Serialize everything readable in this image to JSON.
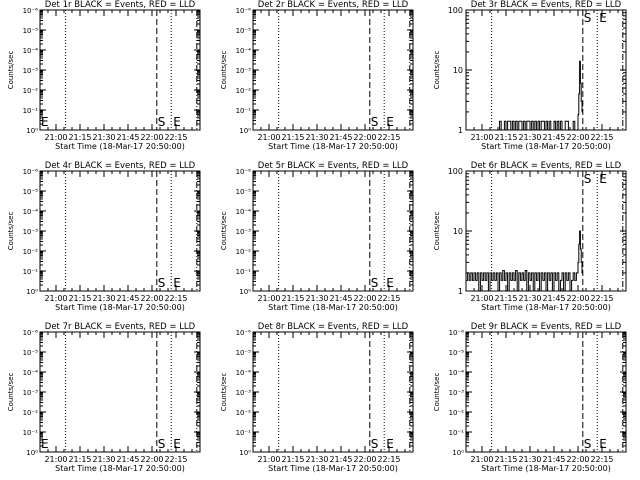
{
  "page": {
    "background": "#ffffff",
    "ink": "#000000"
  },
  "common": {
    "xlabel": "Start Time (18-Mar-17 20:50:00)",
    "ylabel": "Counts/sec",
    "x_tick_labels": [
      "21:00",
      "21:15",
      "21:30",
      "21:45",
      "22:00",
      "22:15"
    ],
    "x_tick_minutes": [
      10,
      25,
      40,
      55,
      70,
      85
    ],
    "x_range_minutes": [
      0,
      100
    ],
    "dotted_lines_minutes": [
      16,
      82
    ],
    "dashed_line_minutes": 73,
    "dashdot_line_minutes": 98,
    "S_marker_minutes": 73,
    "E_marker_minutes": 82,
    "S_label": "S",
    "E_label": "E"
  },
  "chart_data": [
    {
      "type": "line",
      "title": "Det 1r BLACK = Events, RED = LLD",
      "scale": "log-empty",
      "y_tick_labels": [
        "10⁰",
        "10⁻¹",
        "10⁻²",
        "10⁻³",
        "10⁻⁴",
        "10⁻⁵",
        "10⁻⁶"
      ],
      "extra_E_minutes": 0,
      "series": []
    },
    {
      "type": "line",
      "title": "Det 2r BLACK = Events, RED = LLD",
      "scale": "log-empty",
      "y_tick_labels": [
        "10⁰",
        "10⁻¹",
        "10⁻²",
        "10⁻³",
        "10⁻⁴",
        "10⁻⁵",
        "10⁻⁶"
      ],
      "extra_E_minutes": null,
      "series": []
    },
    {
      "type": "line",
      "title": "Det 3r BLACK = Events, RED = LLD",
      "scale": "log",
      "ylim": [
        1,
        100
      ],
      "y_tick_labels": [
        "1",
        "10",
        "100"
      ],
      "extra_E_minutes": null,
      "series": [
        {
          "values": [
            [
              20,
              1
            ],
            [
              21,
              1
            ],
            [
              21,
              1.4
            ],
            [
              22,
              1.4
            ],
            [
              22,
              1
            ],
            [
              24,
              1
            ],
            [
              24,
              1.4
            ],
            [
              25,
              1.4
            ],
            [
              25,
              1
            ],
            [
              26,
              1
            ],
            [
              26,
              1.4
            ],
            [
              28,
              1.4
            ],
            [
              28,
              1
            ],
            [
              29,
              1
            ],
            [
              29,
              1.4
            ],
            [
              30,
              1.4
            ],
            [
              30,
              1
            ],
            [
              31,
              1
            ],
            [
              31,
              1.4
            ],
            [
              32,
              1.4
            ],
            [
              32,
              1
            ],
            [
              33,
              1
            ],
            [
              33,
              1.4
            ],
            [
              35,
              1.4
            ],
            [
              35,
              1
            ],
            [
              36,
              1
            ],
            [
              36,
              1.4
            ],
            [
              37,
              1.4
            ],
            [
              37,
              1
            ],
            [
              38,
              1
            ],
            [
              38,
              1.4
            ],
            [
              40,
              1.4
            ],
            [
              40,
              1
            ],
            [
              41,
              1
            ],
            [
              41,
              1.4
            ],
            [
              42,
              1.4
            ],
            [
              42,
              1
            ],
            [
              43,
              1
            ],
            [
              43,
              1.4
            ],
            [
              44,
              1.4
            ],
            [
              44,
              1
            ],
            [
              45,
              1
            ],
            [
              45,
              1.4
            ],
            [
              46,
              1.4
            ],
            [
              46,
              1
            ],
            [
              47,
              1
            ],
            [
              47,
              1.4
            ],
            [
              49,
              1.4
            ],
            [
              49,
              1
            ],
            [
              50,
              1
            ],
            [
              50,
              1.4
            ],
            [
              51,
              1.4
            ],
            [
              51,
              1
            ],
            [
              52,
              1
            ],
            [
              52,
              1.4
            ],
            [
              53,
              1.4
            ],
            [
              53,
              1
            ],
            [
              55,
              1
            ],
            [
              55,
              1.4
            ],
            [
              56,
              1.4
            ],
            [
              56,
              1
            ],
            [
              57,
              1
            ],
            [
              57,
              1.4
            ],
            [
              58,
              1.4
            ],
            [
              58,
              1
            ],
            [
              59,
              1
            ],
            [
              59,
              1.4
            ],
            [
              60,
              1.4
            ],
            [
              60,
              1
            ],
            [
              62,
              1
            ],
            [
              62,
              1.4
            ],
            [
              64,
              1.4
            ],
            [
              64,
              1
            ],
            [
              67,
              1
            ],
            [
              67,
              1.4
            ],
            [
              68,
              1.4
            ],
            [
              68,
              1
            ],
            [
              70,
              1
            ],
            [
              70,
              1.8
            ],
            [
              70.5,
              1.8
            ],
            [
              70.5,
              4
            ],
            [
              71,
              4
            ],
            [
              71,
              14
            ],
            [
              71.5,
              14
            ],
            [
              71.5,
              6
            ],
            [
              72,
              6
            ],
            [
              72,
              3
            ],
            [
              72.5,
              3
            ],
            [
              72.5,
              2
            ],
            [
              73,
              2
            ]
          ]
        }
      ]
    },
    {
      "type": "line",
      "title": "Det 4r BLACK = Events, RED = LLD",
      "scale": "log-empty",
      "y_tick_labels": [
        "10⁰",
        "10⁻¹",
        "10⁻²",
        "10⁻³",
        "10⁻⁴",
        "10⁻⁵",
        "10⁻⁶"
      ],
      "extra_E_minutes": null,
      "series": []
    },
    {
      "type": "line",
      "title": "Det 5r BLACK = Events, RED = LLD",
      "scale": "log-empty",
      "y_tick_labels": [
        "10⁰",
        "10⁻¹",
        "10⁻²",
        "10⁻³",
        "10⁻⁴",
        "10⁻⁵",
        "10⁻⁶"
      ],
      "extra_E_minutes": null,
      "series": []
    },
    {
      "type": "line",
      "title": "Det 6r BLACK = Events, RED = LLD",
      "scale": "log",
      "ylim": [
        1,
        100
      ],
      "y_tick_labels": [
        "1",
        "10",
        "100"
      ],
      "extra_E_minutes": null,
      "series": [
        {
          "values": [
            [
              0,
              1.5
            ],
            [
              1,
              1.5
            ],
            [
              1,
              2
            ],
            [
              2,
              2
            ],
            [
              2,
              1.5
            ],
            [
              3,
              1.5
            ],
            [
              3,
              2
            ],
            [
              4,
              2
            ],
            [
              4,
              1.5
            ],
            [
              5,
              1.5
            ],
            [
              5,
              2
            ],
            [
              6,
              2
            ],
            [
              6,
              1.5
            ],
            [
              7,
              1.5
            ],
            [
              7,
              2
            ],
            [
              8,
              2
            ],
            [
              8,
              1
            ],
            [
              9,
              1
            ],
            [
              9,
              2
            ],
            [
              10,
              2
            ],
            [
              10,
              1.5
            ],
            [
              11,
              1.5
            ],
            [
              11,
              2
            ],
            [
              12,
              2
            ],
            [
              12,
              1.5
            ],
            [
              13,
              1.5
            ],
            [
              13,
              2
            ],
            [
              14,
              2
            ],
            [
              14,
              1
            ],
            [
              15,
              1
            ],
            [
              15,
              2
            ],
            [
              16,
              2
            ],
            [
              16,
              1.5
            ],
            [
              17,
              1.5
            ],
            [
              17,
              2
            ],
            [
              18,
              2
            ],
            [
              18,
              1.5
            ],
            [
              19,
              1.5
            ],
            [
              19,
              2
            ],
            [
              20,
              2
            ],
            [
              20,
              1
            ],
            [
              21,
              1
            ],
            [
              21,
              2
            ],
            [
              22,
              2
            ],
            [
              22,
              1.5
            ],
            [
              23,
              1.5
            ],
            [
              23,
              2.2
            ],
            [
              24,
              2.2
            ],
            [
              24,
              1.5
            ],
            [
              25,
              1.5
            ],
            [
              25,
              2
            ],
            [
              26,
              2
            ],
            [
              26,
              1
            ],
            [
              27,
              1
            ],
            [
              27,
              2
            ],
            [
              28,
              2
            ],
            [
              28,
              1.5
            ],
            [
              29,
              1.5
            ],
            [
              29,
              2
            ],
            [
              30,
              2
            ],
            [
              30,
              1.5
            ],
            [
              31,
              1.5
            ],
            [
              31,
              2.2
            ],
            [
              32,
              2.2
            ],
            [
              32,
              1
            ],
            [
              33,
              1
            ],
            [
              33,
              2
            ],
            [
              34,
              2
            ],
            [
              34,
              1.5
            ],
            [
              35,
              1.5
            ],
            [
              35,
              2
            ],
            [
              36,
              2
            ],
            [
              36,
              1.5
            ],
            [
              37,
              1.5
            ],
            [
              37,
              2.2
            ],
            [
              38,
              2.2
            ],
            [
              38,
              1
            ],
            [
              39,
              1
            ],
            [
              39,
              2
            ],
            [
              40,
              2
            ],
            [
              40,
              1.5
            ],
            [
              41,
              1.5
            ],
            [
              41,
              2
            ],
            [
              42,
              2
            ],
            [
              42,
              1
            ],
            [
              43,
              1
            ],
            [
              43,
              2
            ],
            [
              44,
              2
            ],
            [
              44,
              1.5
            ],
            [
              45,
              1.5
            ],
            [
              45,
              2
            ],
            [
              46,
              2
            ],
            [
              46,
              1
            ],
            [
              47,
              1
            ],
            [
              47,
              2
            ],
            [
              48,
              2
            ],
            [
              48,
              1.5
            ],
            [
              49,
              1.5
            ],
            [
              49,
              2
            ],
            [
              50,
              2
            ],
            [
              50,
              1
            ],
            [
              51,
              1
            ],
            [
              51,
              2
            ],
            [
              52,
              2
            ],
            [
              52,
              1.5
            ],
            [
              53,
              1.5
            ],
            [
              53,
              2
            ],
            [
              54,
              2
            ],
            [
              54,
              1
            ],
            [
              55,
              1
            ],
            [
              55,
              2
            ],
            [
              56,
              2
            ],
            [
              56,
              1.5
            ],
            [
              57,
              1.5
            ],
            [
              57,
              2
            ],
            [
              58,
              2
            ],
            [
              58,
              1
            ],
            [
              59,
              1
            ],
            [
              59,
              1.5
            ],
            [
              60,
              1.5
            ],
            [
              60,
              2
            ],
            [
              61,
              2
            ],
            [
              61,
              1
            ],
            [
              62,
              1
            ],
            [
              62,
              2
            ],
            [
              63,
              2
            ],
            [
              63,
              1.5
            ],
            [
              64,
              1.5
            ],
            [
              64,
              2
            ],
            [
              65,
              2
            ],
            [
              65,
              1
            ],
            [
              66,
              1
            ],
            [
              66,
              1.5
            ],
            [
              67,
              1.5
            ],
            [
              67,
              2
            ],
            [
              68,
              2
            ],
            [
              68,
              1.5
            ],
            [
              69,
              1.5
            ],
            [
              69,
              2
            ],
            [
              70,
              2
            ],
            [
              70,
              3
            ],
            [
              70.5,
              3
            ],
            [
              70.5,
              6
            ],
            [
              71,
              6
            ],
            [
              71,
              10
            ],
            [
              71.5,
              10
            ],
            [
              71.5,
              5
            ],
            [
              72,
              5
            ],
            [
              72,
              3
            ],
            [
              72.5,
              3
            ],
            [
              72.5,
              2
            ],
            [
              73,
              2
            ]
          ]
        }
      ]
    },
    {
      "type": "line",
      "title": "Det 7r BLACK = Events, RED = LLD",
      "scale": "log-empty",
      "y_tick_labels": [
        "10⁰",
        "10⁻¹",
        "10⁻²",
        "10⁻³",
        "10⁻⁴",
        "10⁻⁵",
        "10⁻⁶"
      ],
      "extra_E_minutes": 0,
      "series": []
    },
    {
      "type": "line",
      "title": "Det 8r BLACK = Events, RED = LLD",
      "scale": "log-empty",
      "y_tick_labels": [
        "10⁰",
        "10⁻¹",
        "10⁻²",
        "10⁻³",
        "10⁻⁴",
        "10⁻⁵",
        "10⁻⁶"
      ],
      "extra_E_minutes": null,
      "series": []
    },
    {
      "type": "line",
      "title": "Det 9r BLACK = Events, RED = LLD",
      "scale": "log-empty",
      "y_tick_labels": [
        "10⁰",
        "10⁻¹",
        "10⁻²",
        "10⁻³",
        "10⁻⁴",
        "10⁻⁵",
        "10⁻⁶"
      ],
      "extra_E_minutes": null,
      "series": []
    }
  ]
}
